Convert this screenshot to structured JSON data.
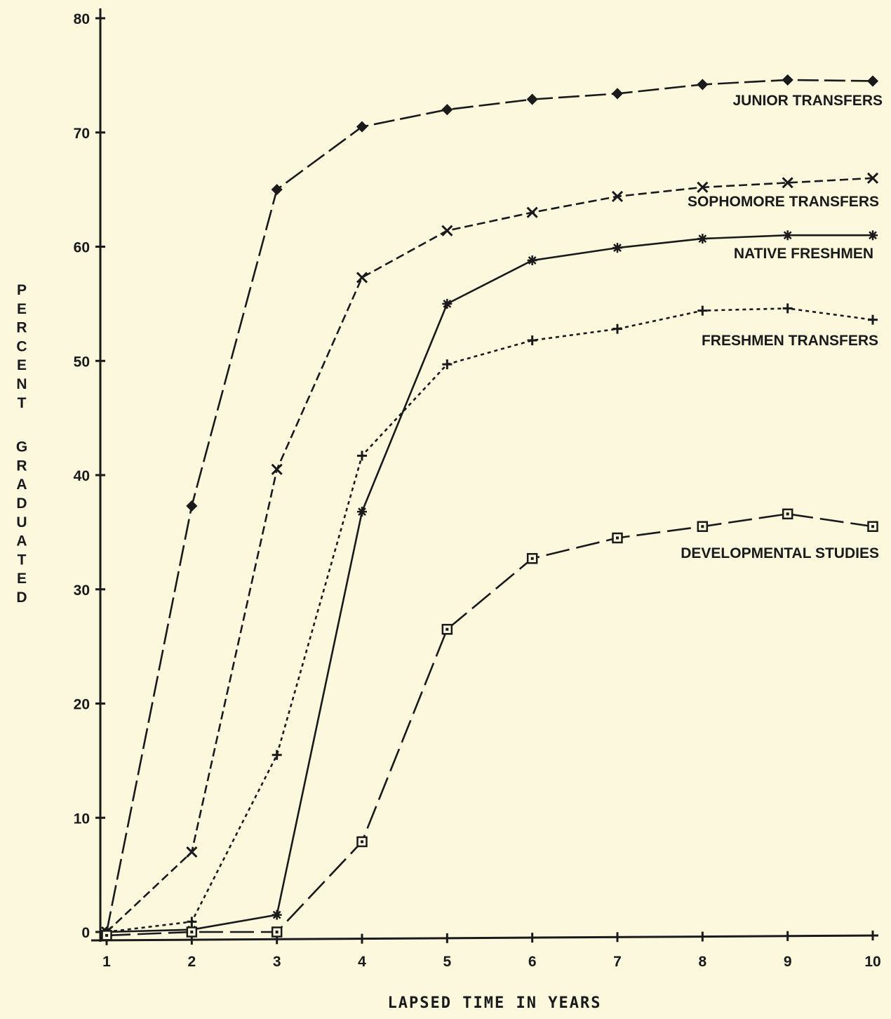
{
  "chart_data": {
    "type": "line",
    "title": "",
    "xlabel": "LAPSED TIME IN YEARS",
    "ylabel": "PERCENT GRADUATED",
    "x": [
      1,
      2,
      3,
      4,
      5,
      6,
      7,
      8,
      9,
      10
    ],
    "xlim": [
      1,
      10
    ],
    "ylim": [
      0,
      80
    ],
    "yticks": [
      0,
      10,
      20,
      30,
      40,
      50,
      60,
      70,
      80
    ],
    "grid": false,
    "legend": "inline labels at right end of each line",
    "series": [
      {
        "name": "JUNIOR TRANSFERS",
        "marker": "diamond",
        "dash": "long-dash",
        "values": [
          0,
          37.3,
          65.0,
          70.5,
          72.0,
          72.9,
          73.4,
          74.2,
          74.6,
          74.5
        ]
      },
      {
        "name": "SOPHOMORE TRANSFERS",
        "marker": "x",
        "dash": "dash",
        "values": [
          0,
          7.0,
          40.5,
          57.3,
          61.4,
          63.0,
          64.4,
          65.2,
          65.6,
          66.0
        ]
      },
      {
        "name": "NATIVE FRESHMEN",
        "marker": "star",
        "dash": "solid",
        "values": [
          0,
          0.2,
          1.5,
          36.8,
          55.0,
          58.8,
          59.9,
          60.7,
          61.0,
          61.0
        ]
      },
      {
        "name": "FRESHMEN TRANSFERS",
        "marker": "plus",
        "dash": "dotted",
        "values": [
          0,
          0.9,
          15.5,
          41.7,
          49.7,
          51.8,
          52.8,
          54.4,
          54.6,
          53.6
        ]
      },
      {
        "name": "DEVELOPMENTAL STUDIES",
        "marker": "square",
        "dash": "long-dash-gap",
        "values": [
          -0.3,
          0,
          0,
          7.9,
          26.5,
          32.7,
          34.5,
          35.5,
          36.6,
          35.5
        ]
      }
    ]
  }
}
